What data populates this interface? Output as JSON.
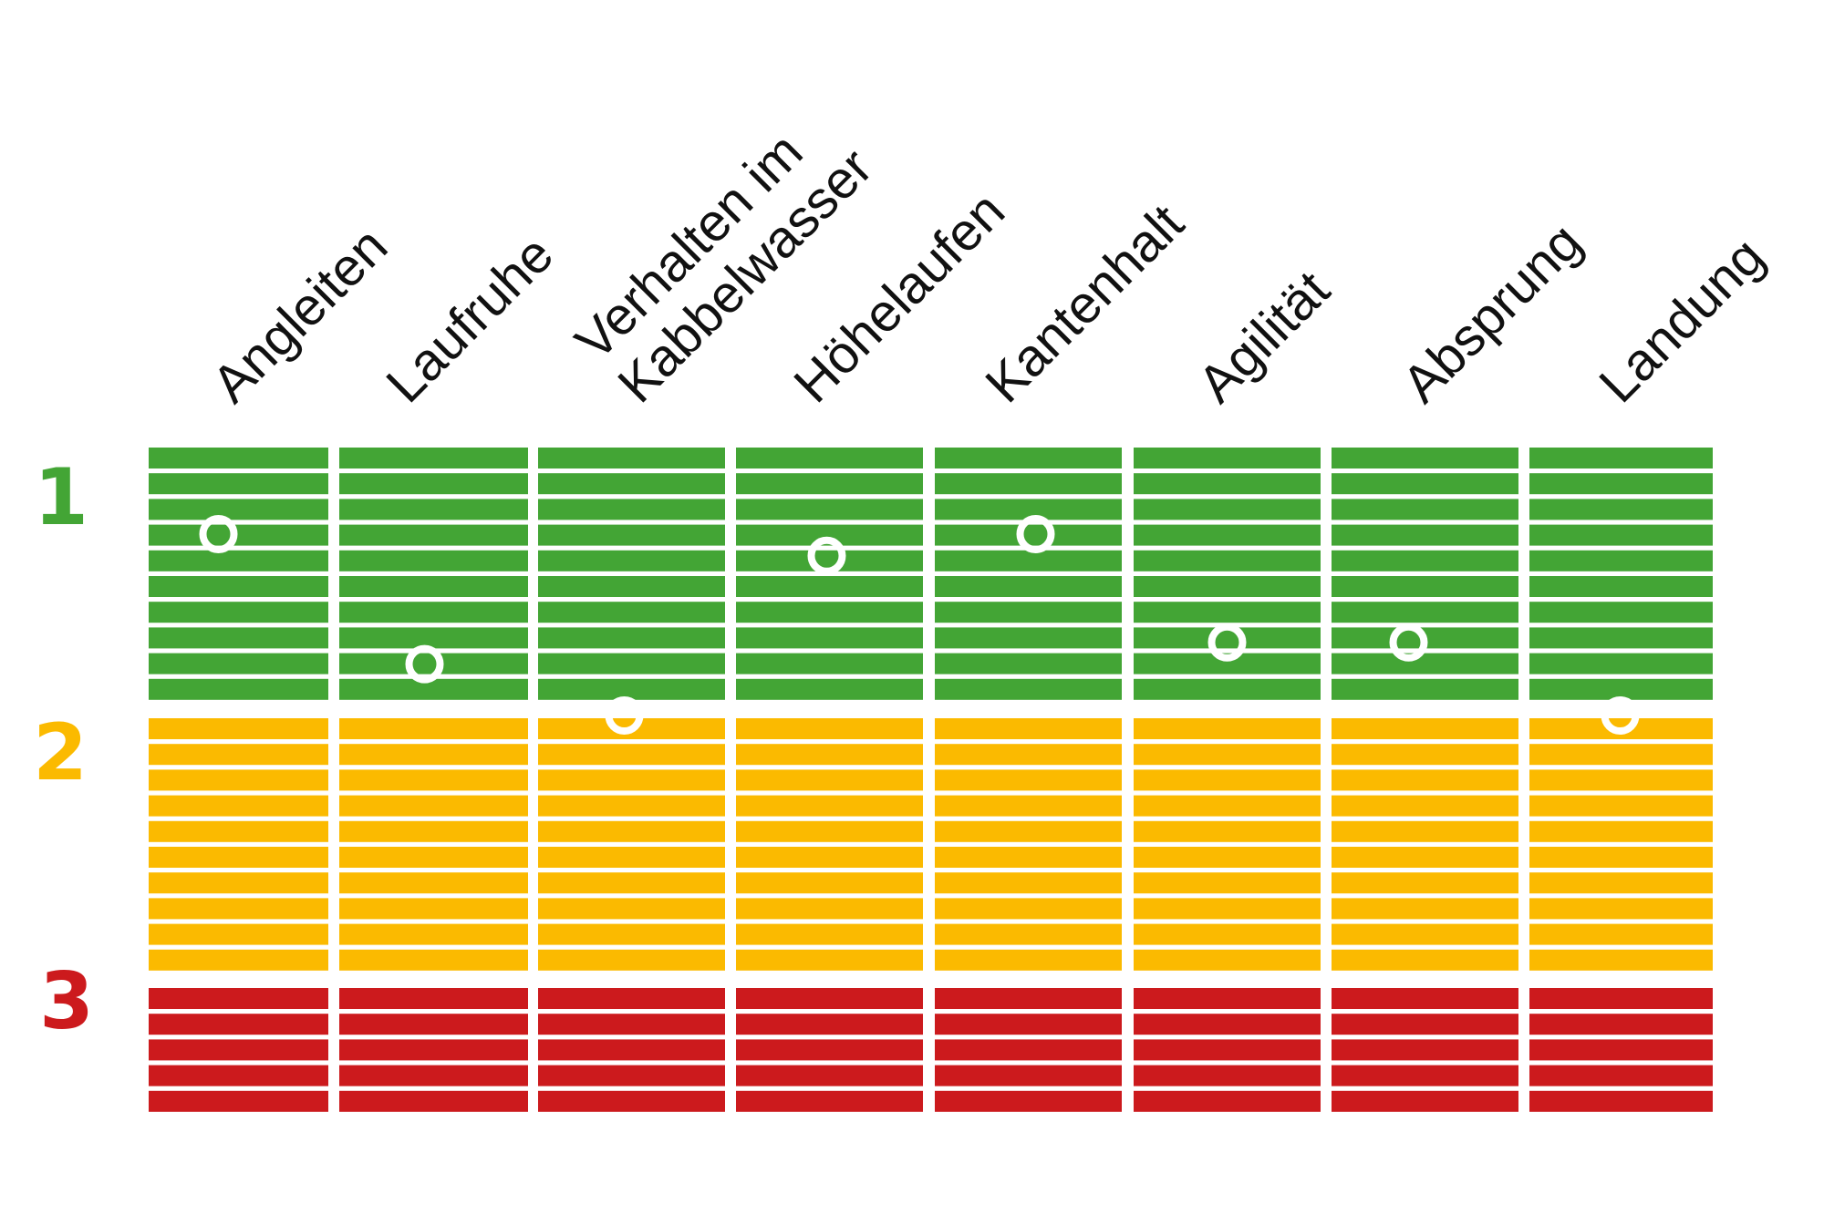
{
  "chart_data": {
    "type": "heatmap",
    "categories": [
      [
        "Angleiten"
      ],
      [
        "Laufruhe"
      ],
      [
        "Verhalten im",
        "Kabbelwasser"
      ],
      [
        "Höhelaufen"
      ],
      [
        "Kantenhalt"
      ],
      [
        "Agilität"
      ],
      [
        "Absprung"
      ],
      [
        "Landung"
      ]
    ],
    "levels": [
      {
        "label": "1",
        "color": "#43a535"
      },
      {
        "label": "2",
        "color": "#fbba00"
      },
      {
        "label": "3",
        "color": "#cc1a1d"
      }
    ],
    "scale_range": [
      1,
      3
    ],
    "rows_per_level": [
      10,
      10,
      5
    ],
    "values": [
      1.32,
      1.8,
      1.99,
      1.4,
      1.32,
      1.72,
      1.72,
      1.99
    ],
    "marker_color": "#ffffff"
  }
}
